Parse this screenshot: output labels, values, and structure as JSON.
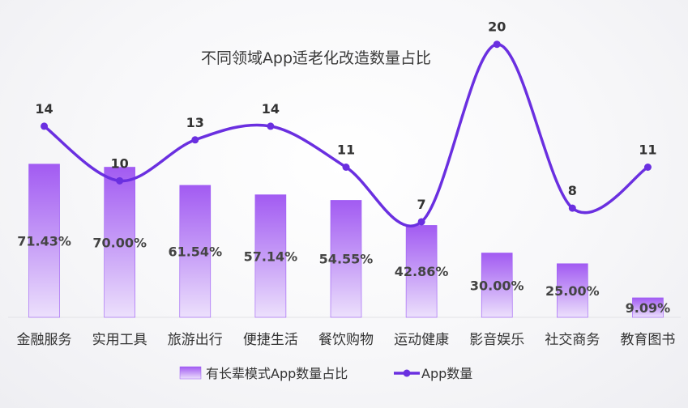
{
  "chart_data": {
    "type": "bar",
    "title": "不同领域App适老化改造数量占比",
    "categories": [
      "金融服务",
      "实用工具",
      "旅游出行",
      "便捷生活",
      "餐饮购物",
      "运动健康",
      "影音娱乐",
      "社交商务",
      "教育图书"
    ],
    "series": [
      {
        "name": "有长辈模式App数量占比",
        "type": "bar",
        "values": [
          71.43,
          70.0,
          61.54,
          57.14,
          54.55,
          42.86,
          30.0,
          25.0,
          9.09
        ],
        "labels": [
          "71.43%",
          "70.00%",
          "61.54%",
          "57.14%",
          "54.55%",
          "42.86%",
          "30.00%",
          "25.00%",
          "9.09%"
        ],
        "color": "#9b59f5"
      },
      {
        "name": "App数量",
        "type": "line",
        "smooth": true,
        "values": [
          14,
          10,
          13,
          14,
          11,
          7,
          20,
          8,
          11
        ],
        "color": "#6a2fe0"
      }
    ],
    "bar_ylim": [
      0,
      100
    ],
    "line_ylim": [
      0,
      22
    ],
    "grid": false,
    "legend_position": "bottom-center"
  }
}
